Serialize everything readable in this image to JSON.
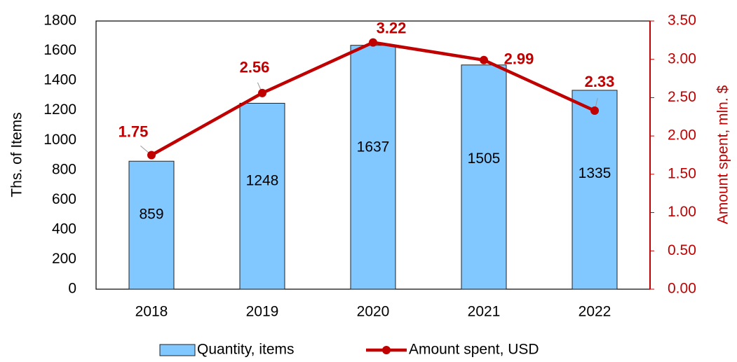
{
  "chart_data": {
    "type": "bar+line",
    "categories": [
      "2018",
      "2019",
      "2020",
      "2021",
      "2022"
    ],
    "series": [
      {
        "name": "Quantity, items",
        "type": "bar",
        "color": "#80c8ff",
        "values": [
          859,
          1248,
          1637,
          1505,
          1335
        ]
      },
      {
        "name": "Amount spent, USD",
        "type": "line",
        "color": "#c00000",
        "axis": "y2",
        "values": [
          1.75,
          2.56,
          3.22,
          2.99,
          2.33
        ]
      }
    ],
    "ylabel": "Ths. of Items",
    "y2label": "Amount spent, mln. $",
    "ylim": [
      0,
      1800
    ],
    "yticks": [
      0,
      200,
      400,
      600,
      800,
      1000,
      1200,
      1400,
      1600,
      1800
    ],
    "y2lim": [
      0,
      3.5
    ],
    "y2ticks": [
      {
        "value": 0,
        "label": "0.00"
      },
      {
        "value": 0.5,
        "label": "0.50"
      },
      {
        "value": 1,
        "label": "1.00"
      },
      {
        "value": 1.5,
        "label": "1.50"
      },
      {
        "value": 2,
        "label": "2.00"
      },
      {
        "value": 2.5,
        "label": "2.50"
      },
      {
        "value": 3,
        "label": "3.00"
      },
      {
        "value": 3.5,
        "label": "3.50"
      }
    ],
    "legend": "bottom"
  }
}
